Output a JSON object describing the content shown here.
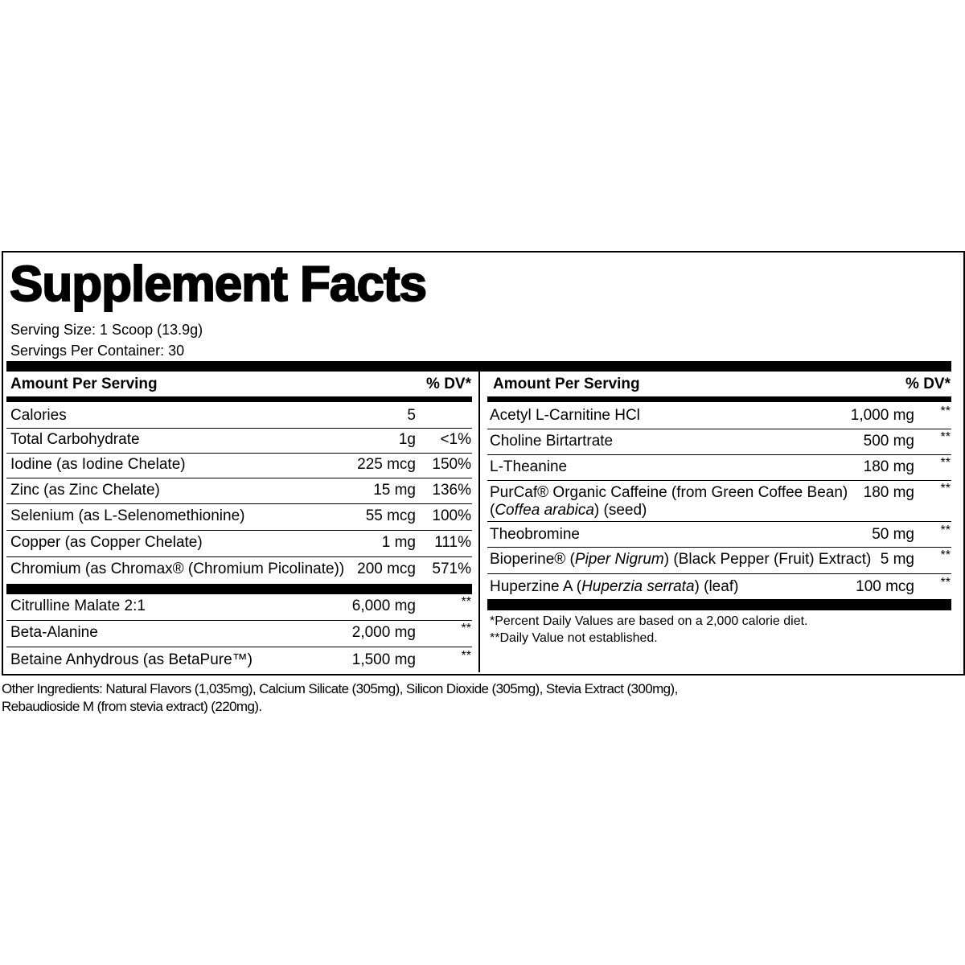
{
  "title": "Supplement Facts",
  "serving_size": "Serving Size: 1 Scoop (13.9g)",
  "servings_per_container": "Servings Per Container: 30",
  "left": {
    "header": {
      "amount": "Amount Per Serving",
      "dv": "% DV*"
    },
    "groups": [
      [
        {
          "name": "Calories",
          "amount": "5"
        },
        {
          "name": "Total Carbohydrate",
          "amount": "1g",
          "dv": "<1%"
        },
        {
          "name": "Iodine (as Iodine Chelate)",
          "amount": "225 mcg",
          "dv": "150%"
        },
        {
          "name": "Zinc (as Zinc Chelate)",
          "amount": "15 mg",
          "dv": "136%"
        },
        {
          "name": "Selenium (as L-Selenomethionine)",
          "amount": "55 mcg",
          "dv": "100%"
        },
        {
          "name": "Copper (as Copper Chelate)",
          "amount": "1 mg",
          "dv": "111%"
        },
        {
          "name": "Chromium (as Chromax® (Chromium Picolinate))",
          "amount": "200 mcg",
          "dv": "571%"
        }
      ],
      [
        {
          "name": "Citrulline Malate 2:1",
          "amount": "6,000 mg",
          "dv": "**"
        },
        {
          "name": "Beta-Alanine",
          "amount": "2,000 mg",
          "dv": "**"
        },
        {
          "name": "Betaine Anhydrous (as BetaPure™)",
          "amount": "1,500 mg",
          "dv": "**"
        }
      ]
    ]
  },
  "right": {
    "header": {
      "amount": "Amount Per Serving",
      "dv": "% DV*"
    },
    "rows": [
      {
        "name": "Acetyl L-Carnitine HCl",
        "amount": "1,000 mg",
        "dv": "**"
      },
      {
        "name": "Choline Birtartrate",
        "amount": "500 mg",
        "dv": "**"
      },
      {
        "name": "L-Theanine",
        "amount": "180 mg",
        "dv": "**"
      },
      {
        "name": [
          {
            "text": "PurCaf® Organic Caffeine (from Green Coffee Bean)"
          },
          {
            "text": "(",
            "break": true
          },
          {
            "text": "Coffea arabica",
            "italic": true
          },
          {
            "text": ") (seed)"
          }
        ],
        "amount": "180 mg",
        "dv": "**"
      },
      {
        "name": "Theobromine",
        "amount": "50 mg",
        "dv": "**"
      },
      {
        "name": [
          {
            "text": "Bioperine® ("
          },
          {
            "text": "Piper Nigrum",
            "italic": true
          },
          {
            "text": ") (Black Pepper (Fruit) Extract)"
          }
        ],
        "amount": "5 mg",
        "dv": "**"
      },
      {
        "name": [
          {
            "text": "Huperzine A ("
          },
          {
            "text": "Huperzia serrata",
            "italic": true
          },
          {
            "text": ") (leaf)"
          }
        ],
        "amount": "100 mcg",
        "dv": "**"
      }
    ],
    "footnotes": [
      "*Percent Daily Values are based on a 2,000 calorie diet.",
      "**Daily Value not established."
    ]
  },
  "other_ingredients": [
    "Other Ingredients: Natural Flavors (1,035mg), Calcium Silicate (305mg), Silicon Dioxide (305mg), Stevia Extract (300mg),",
    "Rebaudioside M (from stevia extract) (220mg)."
  ]
}
